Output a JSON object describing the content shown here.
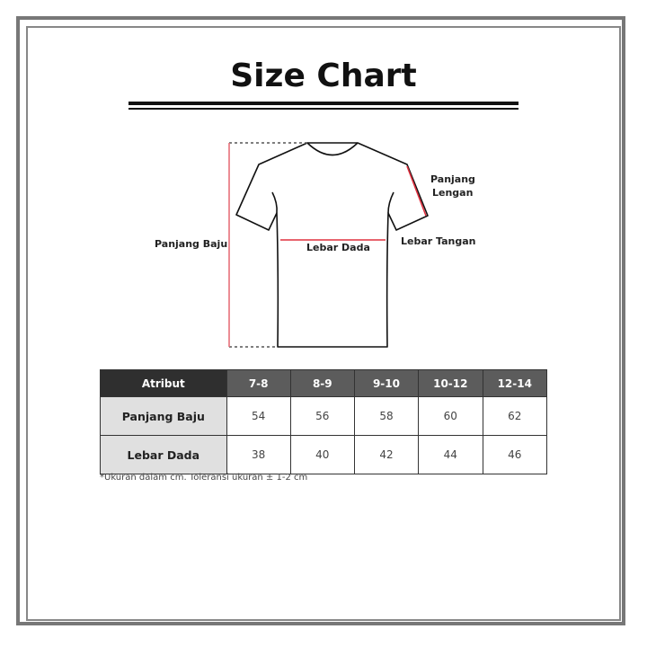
{
  "title": "Size Chart",
  "diagram": {
    "labels": {
      "panjang_baju": "Panjang Baju",
      "panjang_lengan_1": "Panjang",
      "panjang_lengan_2": "Lengan",
      "lebar_dada": "Lebar Dada",
      "lebar_tangan": "Lebar Tangan"
    },
    "measure_color": "#e0303f"
  },
  "table": {
    "headers": [
      "Atribut",
      "7-8",
      "8-9",
      "9-10",
      "10-12",
      "12-14"
    ],
    "rows": [
      {
        "label": "Panjang Baju",
        "values": [
          "54",
          "56",
          "58",
          "60",
          "62"
        ]
      },
      {
        "label": "Lebar Dada",
        "values": [
          "38",
          "40",
          "42",
          "44",
          "46"
        ]
      }
    ]
  },
  "note": "*Ukuran dalam cm. Toleransi ukuran ± 1-2 cm"
}
